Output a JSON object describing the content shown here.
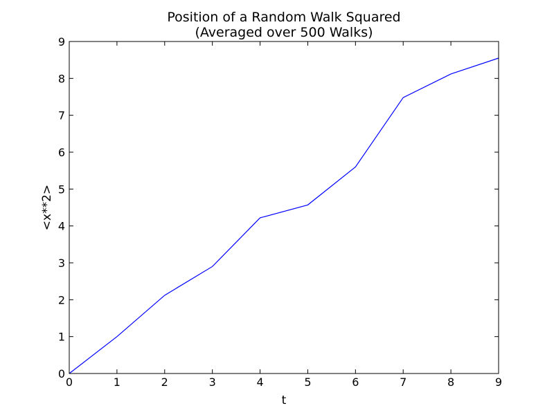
{
  "chart_data": {
    "type": "line",
    "title": [
      "Position of a Random Walk Squared",
      "(Averaged over 500 Walks)"
    ],
    "xlabel": "t",
    "ylabel": "<x**2>",
    "xlim": [
      0,
      9
    ],
    "ylim": [
      0,
      9
    ],
    "xticks": [
      0,
      1,
      2,
      3,
      4,
      5,
      6,
      7,
      8,
      9
    ],
    "yticks": [
      0,
      1,
      2,
      3,
      4,
      5,
      6,
      7,
      8,
      9
    ],
    "grid": false,
    "series": [
      {
        "color": "#0000ff",
        "x": [
          0,
          1,
          2,
          3,
          4,
          5,
          6,
          7,
          8,
          9
        ],
        "y": [
          0.0,
          1.0,
          2.12,
          2.9,
          4.22,
          4.57,
          5.6,
          7.48,
          8.12,
          8.55
        ]
      }
    ]
  }
}
